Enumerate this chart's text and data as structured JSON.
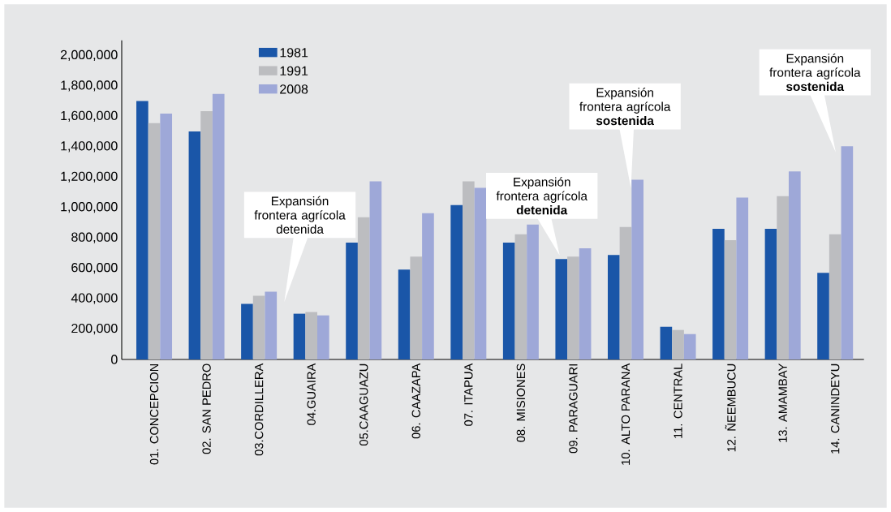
{
  "chart_data": {
    "type": "bar",
    "categories": [
      "01. CONCEPCION",
      "02. SAN PEDRO",
      "03.CORDILLERA",
      "04.GUAIRA",
      "05.CAAGUAZU",
      "06. CAAZAPA",
      "07. ITAPUA",
      "08. MISIONES",
      "09. PARAGUARI",
      "10. ALTO PARANA",
      "11. CENTRAL",
      "12. ÑEEMBUCU",
      "13. AMAMBAY",
      "14. CANINDEYU"
    ],
    "series": [
      {
        "name": "1981",
        "color": "#1a56a8",
        "values": [
          1700000,
          1500000,
          366000,
          301000,
          769000,
          591000,
          1016000,
          769000,
          661000,
          688000,
          215000,
          860000,
          860000,
          570000
        ]
      },
      {
        "name": "1991",
        "color": "#bcbdc0",
        "values": [
          1555000,
          1634000,
          419000,
          312000,
          935000,
          677000,
          1172000,
          823000,
          677000,
          871000,
          194000,
          785000,
          1075000,
          823000
        ]
      },
      {
        "name": "2008",
        "color": "#9ea8d8",
        "values": [
          1618000,
          1747000,
          446000,
          290000,
          1172000,
          962000,
          1129000,
          887000,
          731000,
          1183000,
          167000,
          1065000,
          1237000,
          1403000
        ]
      }
    ],
    "ylim": [
      0,
      2100000
    ],
    "yticks": [
      {
        "value": 0,
        "label": "0"
      },
      {
        "value": 200000,
        "label": "200,000"
      },
      {
        "value": 400000,
        "label": "400,000"
      },
      {
        "value": 600000,
        "label": "600,000"
      },
      {
        "value": 800000,
        "label": "800,000"
      },
      {
        "value": 1000000,
        "label": "1,000,000"
      },
      {
        "value": 1200000,
        "label": "1,200,000"
      },
      {
        "value": 1400000,
        "label": "1,400,000"
      },
      {
        "value": 1600000,
        "label": "1,600,000"
      },
      {
        "value": 1800000,
        "label": "1,800,000"
      },
      {
        "value": 2000000,
        "label": "2,000,000"
      }
    ],
    "legend": "top left",
    "annotations": [
      "Expansión frontera agrícola detenida",
      "Expansión frontera agrícola **detenida**",
      "Expansión frontera agrícola **sostenida**",
      "Expansión frontera agrícola **sostenida**"
    ]
  }
}
